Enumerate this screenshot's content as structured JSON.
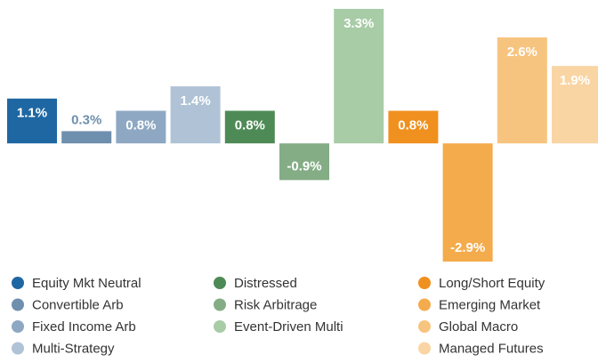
{
  "chart_data": {
    "type": "bar",
    "categories": [
      "Equity Mkt Neutral",
      "Convertible Arb",
      "Fixed Income Arb",
      "Multi-Strategy",
      "Distressed",
      "Risk Arbitrage",
      "Event-Driven Multi",
      "Long/Short Equity",
      "Emerging Market",
      "Global Macro",
      "Managed Futures"
    ],
    "values": [
      1.1,
      0.3,
      0.8,
      1.4,
      0.8,
      -0.9,
      3.3,
      0.8,
      -2.9,
      2.6,
      1.9
    ],
    "value_labels": [
      "1.1%",
      "0.3%",
      "0.8%",
      "1.4%",
      "0.8%",
      "-0.9%",
      "3.3%",
      "0.8%",
      "-2.9%",
      "2.6%",
      "1.9%"
    ],
    "colors": [
      "#1f67a3",
      "#6f8fae",
      "#8ea8c3",
      "#b0c3d6",
      "#4e8a55",
      "#84ad86",
      "#a7cca6",
      "#f0901e",
      "#f4ab4b",
      "#f7c47f",
      "#f9d5a4"
    ]
  }
}
